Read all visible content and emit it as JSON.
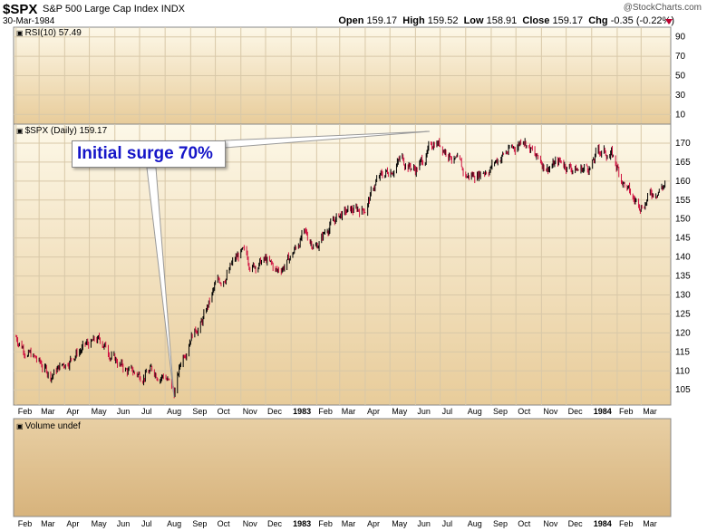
{
  "header": {
    "symbol": "$SPX",
    "name": "S&P 500 Large Cap Index",
    "exchange": "INDX",
    "date": "30-Mar-1984",
    "copyright": "@StockCharts.com",
    "open_label": "Open",
    "open": "159.17",
    "high_label": "High",
    "high": "159.52",
    "low_label": "Low",
    "low": "158.91",
    "close_label": "Close",
    "close": "159.17",
    "chg_label": "Chg",
    "chg": "-0.35 (-0.22%)",
    "chg_arrow": "down-arrow-icon"
  },
  "panels": {
    "rsi_label": "RSI(10) 57.49",
    "price_label": "$SPX (Daily) 159.17",
    "volume_label": "Volume undef"
  },
  "annotation": {
    "text": "Initial surge 70%"
  },
  "colors": {
    "up_bar": "#000000",
    "down_bar": "#d01040",
    "background_top": "#fdf8e8",
    "background_bottom": "#e8cc9a",
    "annotation_text": "#1515c8"
  },
  "chart_data": [
    {
      "type": "line",
      "title": "RSI(10) 57.49",
      "ylim": [
        0,
        100
      ],
      "yticks": [
        10,
        30,
        50,
        70,
        90
      ],
      "grid": true,
      "values": []
    },
    {
      "type": "line",
      "title": "$SPX (Daily) 159.17",
      "ylim": [
        101,
        175
      ],
      "yticks": [
        105,
        110,
        115,
        120,
        125,
        130,
        135,
        140,
        145,
        150,
        155,
        160,
        165,
        170
      ],
      "grid": true,
      "x": [
        "1982-02-01",
        "1982-02-15",
        "1982-03-01",
        "1982-03-15",
        "1982-04-01",
        "1982-04-15",
        "1982-05-01",
        "1982-05-15",
        "1982-06-01",
        "1982-06-15",
        "1982-07-01",
        "1982-07-15",
        "1982-08-01",
        "1982-08-12",
        "1982-08-20",
        "1982-09-01",
        "1982-09-15",
        "1982-10-01",
        "1982-10-15",
        "1982-11-01",
        "1982-11-15",
        "1982-12-01",
        "1982-12-15",
        "1983-01-01",
        "1983-01-15",
        "1983-02-01",
        "1983-02-15",
        "1983-03-01",
        "1983-03-15",
        "1983-04-01",
        "1983-04-15",
        "1983-05-01",
        "1983-05-15",
        "1983-06-01",
        "1983-06-15",
        "1983-06-25",
        "1983-07-15",
        "1983-08-01",
        "1983-08-15",
        "1983-09-01",
        "1983-09-15",
        "1983-10-01",
        "1983-10-10",
        "1983-10-25",
        "1983-11-08",
        "1983-11-25",
        "1983-12-15",
        "1984-01-01",
        "1984-01-09",
        "1984-01-25",
        "1984-02-08",
        "1984-02-20",
        "1984-03-01",
        "1984-03-15",
        "1984-03-30"
      ],
      "values": [
        119,
        115,
        112,
        109,
        112,
        115,
        117,
        118,
        113,
        110,
        109,
        110,
        109,
        104,
        112,
        120,
        123,
        132,
        136,
        141,
        138,
        139,
        136,
        140,
        146,
        143,
        148,
        151,
        152,
        153,
        160,
        163,
        166,
        163,
        167,
        171,
        167,
        161,
        162,
        164,
        167,
        169,
        172,
        166,
        164,
        165,
        163,
        164,
        168,
        167,
        160,
        155,
        154,
        157,
        159.17
      ],
      "x_tick_labels": [
        "Feb",
        "Mar",
        "Apr",
        "May",
        "Jun",
        "Jul",
        "Aug",
        "Sep",
        "Oct",
        "Nov",
        "Dec",
        "1983",
        "Feb",
        "Mar",
        "Apr",
        "May",
        "Jun",
        "Jul",
        "Aug",
        "Sep",
        "Oct",
        "Nov",
        "Dec",
        "1984",
        "Feb",
        "Mar"
      ]
    },
    {
      "type": "bar",
      "title": "Volume undef",
      "values": []
    }
  ]
}
